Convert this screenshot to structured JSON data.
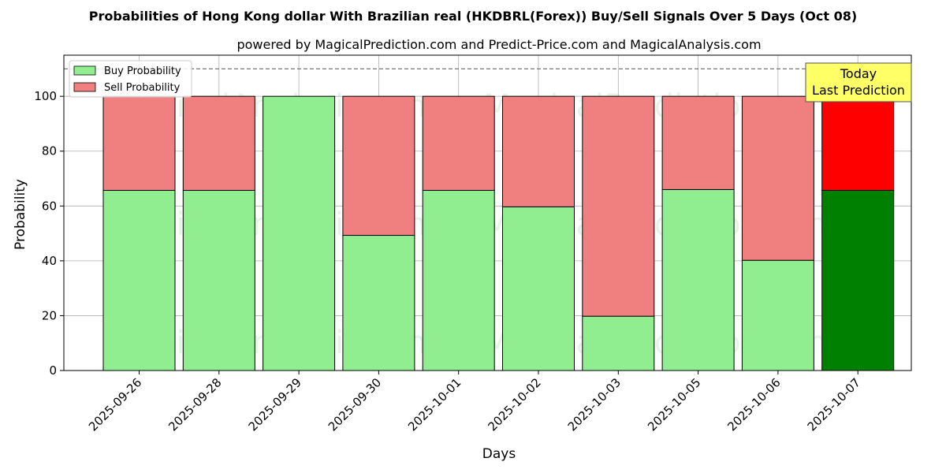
{
  "chart_data": {
    "type": "bar",
    "stacked": true,
    "title": "Probabilities of Hong Kong dollar With Brazilian real (HKDBRL(Forex)) Buy/Sell Signals Over 5 Days (Oct 08)",
    "subtitle": "powered by MagicalPrediction.com and Predict-Price.com and MagicalAnalysis.com",
    "xlabel": "Days",
    "ylabel": "Probability",
    "ylim": [
      0,
      115
    ],
    "yticks": [
      0,
      20,
      40,
      60,
      80,
      100
    ],
    "grid": true,
    "legend_position": "top-left",
    "reference_line": 110,
    "categories": [
      "2025-09-26",
      "2025-09-28",
      "2025-09-29",
      "2025-09-30",
      "2025-10-01",
      "2025-10-02",
      "2025-10-03",
      "2025-10-05",
      "2025-10-06",
      "2025-10-07"
    ],
    "series": [
      {
        "name": "Buy Probability",
        "color": "#90ee90",
        "highlight_color": "#008000",
        "values": [
          65.7,
          65.7,
          100,
          49.3,
          65.7,
          59.7,
          19.8,
          66.0,
          40.2,
          65.7
        ]
      },
      {
        "name": "Sell Probability",
        "color": "#f08080",
        "highlight_color": "#ff0000",
        "values": [
          34.3,
          34.3,
          0,
          50.7,
          34.3,
          40.3,
          80.2,
          34.0,
          59.8,
          34.3
        ]
      }
    ],
    "highlight_index": 9,
    "annotation": {
      "line1": "Today",
      "line2": "Last Prediction",
      "background": "#ffff66"
    },
    "watermarks": [
      "MagicalAnalysis.com",
      "MagicalPrediction.com"
    ]
  }
}
